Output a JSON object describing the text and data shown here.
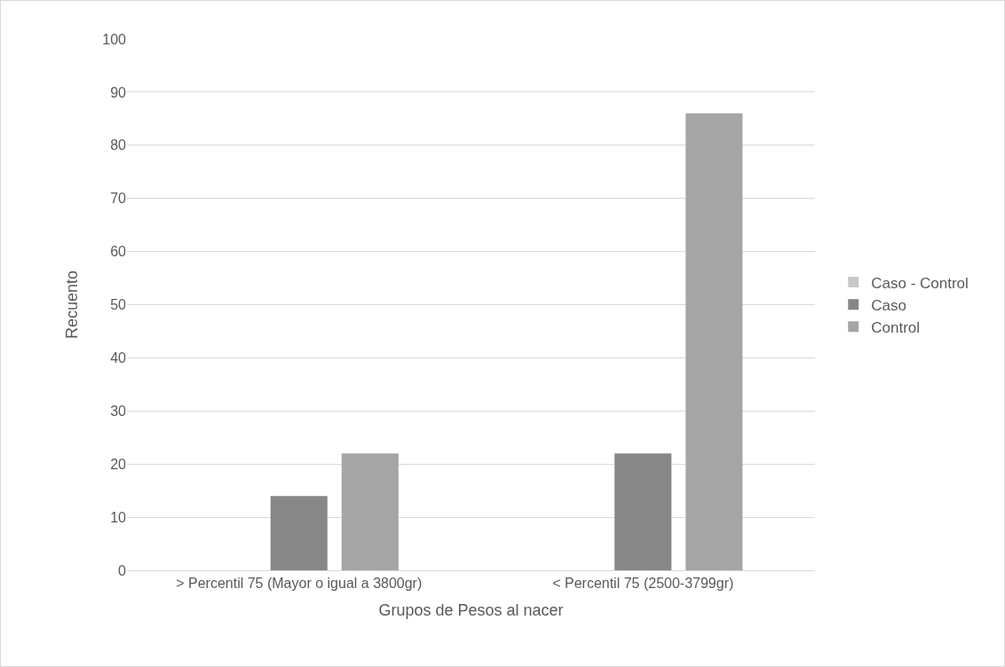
{
  "chart_data": {
    "type": "bar",
    "categories": [
      "> Percentil 75 (Mayor o igual a 3800gr)",
      "< Percentil 75 (2500-3799gr)"
    ],
    "series": [
      {
        "name": "Caso - Control",
        "color": "#c8c8c8",
        "values": [
          null,
          null
        ]
      },
      {
        "name": "Caso",
        "color": "#878787",
        "values": [
          14,
          22
        ]
      },
      {
        "name": "Control",
        "color": "#a5a5a5",
        "values": [
          22,
          86
        ]
      }
    ],
    "xlabel": "Grupos de Pesos al nacer",
    "ylabel": "Recuento",
    "ylim": [
      0,
      100
    ],
    "yticks": [
      0,
      10,
      20,
      30,
      40,
      50,
      60,
      70,
      80,
      90,
      100
    ],
    "grid": "y",
    "legend": "right"
  }
}
